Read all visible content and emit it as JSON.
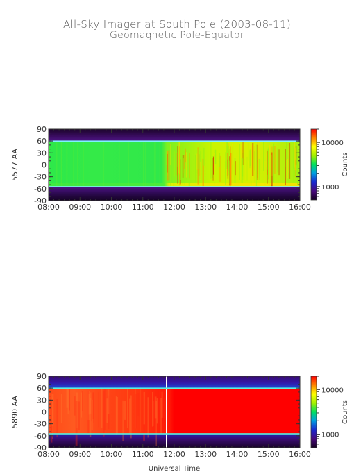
{
  "title": "All-Sky Imager at South Pole (2003-08-11)",
  "subtitle": "Geomagnetic Pole-Equator",
  "chart_data": [
    {
      "type": "heatmap",
      "ylabel": "5577 AA",
      "xlabel": "",
      "x_ticks": [
        "08:00",
        "09:00",
        "10:00",
        "11:00",
        "12:00",
        "13:00",
        "14:00",
        "15:00",
        "16:00"
      ],
      "y_ticks": [
        "90",
        "60",
        "30",
        "0",
        "-30",
        "-60",
        "-90"
      ],
      "xlim": [
        "08:00",
        "16:00"
      ],
      "ylim": [
        -90,
        90
      ],
      "colorbar": {
        "label": "Counts",
        "ticks": [
          "10000",
          "1000"
        ],
        "scale": "log"
      },
      "bands": [
        {
          "from": 60,
          "to": 90,
          "approx_counts": 500
        },
        {
          "from": -55,
          "to": 60,
          "approx_counts": 4000,
          "note": "increasing intensity after 11:45, peaks ~13:30-14:30"
        },
        {
          "from": -90,
          "to": -55,
          "approx_counts": 500
        }
      ]
    },
    {
      "type": "heatmap",
      "ylabel": "5890 AA",
      "xlabel": "Universal Time",
      "x_ticks": [
        "08:00",
        "09:00",
        "10:00",
        "11:00",
        "12:00",
        "13:00",
        "14:00",
        "15:00",
        "16:00"
      ],
      "y_ticks": [
        "90",
        "60",
        "30",
        "0",
        "-30",
        "-60",
        "-90"
      ],
      "xlim": [
        "08:00",
        "16:00"
      ],
      "ylim": [
        -90,
        90
      ],
      "colorbar": {
        "label": "Counts",
        "ticks": [
          "10000",
          "1000"
        ],
        "scale": "log"
      },
      "data_gap": "11:45",
      "bands": [
        {
          "from": 60,
          "to": 90,
          "approx_counts": 800
        },
        {
          "from": -55,
          "to": 60,
          "approx_counts": 15000
        },
        {
          "from": -90,
          "to": -55,
          "approx_counts": 600
        }
      ]
    }
  ]
}
